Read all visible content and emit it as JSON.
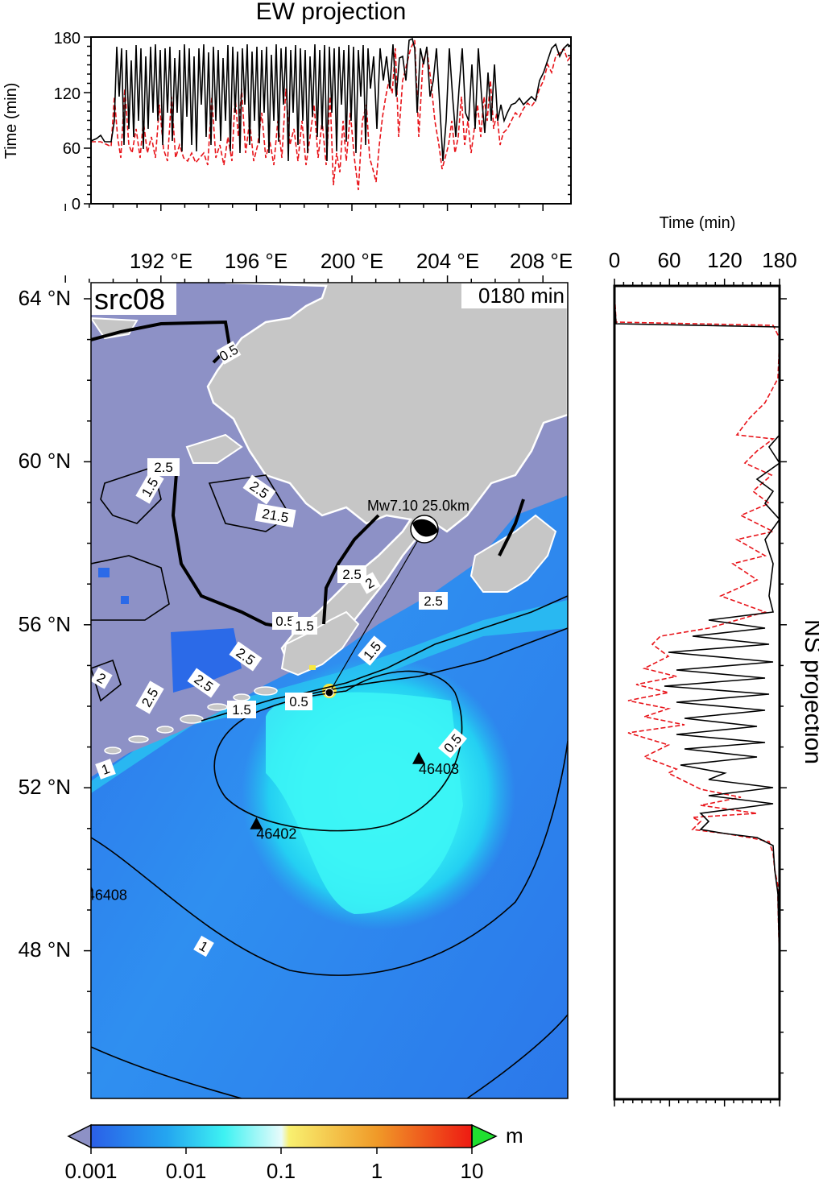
{
  "map": {
    "source_label": "src08",
    "time_label": "0180 min",
    "lon_ticks": [
      "192 °E",
      "196 °E",
      "200 °E",
      "204 °E",
      "208 °E"
    ],
    "lat_ticks": [
      "64 °N",
      "60 °N",
      "56 °N",
      "52 °N",
      "48 °N"
    ],
    "event_label": "Mw7.10  25.0km",
    "stations": [
      {
        "id": "46403",
        "lon": 202.8,
        "lat": 52.7
      },
      {
        "id": "46402",
        "lon": 196.0,
        "lat": 51.1
      },
      {
        "id": "46408",
        "lon": 188.9,
        "lat": 49.6
      }
    ],
    "epicenter": {
      "lon": 199.2,
      "lat": 54.3
    },
    "contour_labels_land": [
      "0.5",
      "2.5",
      "1.5",
      "2.5",
      "21.5",
      "2.5",
      "2",
      "0.5",
      "1.5",
      "2.5",
      "2.5",
      "1.5",
      "2",
      "2.5",
      "1.5",
      "1",
      "2.5"
    ],
    "contour_labels_sea": [
      "0.5",
      "0.5",
      "1"
    ],
    "colors": {
      "land": "#c6c6c6",
      "low_region": "#8d91c6",
      "ocean_deep": "#2b78ea",
      "ocean_mid": "#2ad6f0",
      "ocean_center": "#3cf6f6",
      "hot": "#f8e840"
    }
  },
  "ew_panel": {
    "title": "EW projection",
    "ylabel": "Time (min)",
    "yticks": [
      "0",
      "60",
      "120",
      "180"
    ]
  },
  "ns_panel": {
    "title": "NS projection",
    "xlabel": "Time (min)",
    "xticks": [
      "0",
      "60",
      "120",
      "180"
    ]
  },
  "colorbar": {
    "unit": "m",
    "tick_labels": [
      "0.001",
      "0.01",
      "0.1",
      "1",
      "10"
    ],
    "colors": [
      "#2b5fe8",
      "#24c2f2",
      "#3ef2f2",
      "#f4f040",
      "#f08a20",
      "#ee2a18"
    ],
    "under_color": "#8d91c6",
    "over_color": "#20e030"
  }
}
